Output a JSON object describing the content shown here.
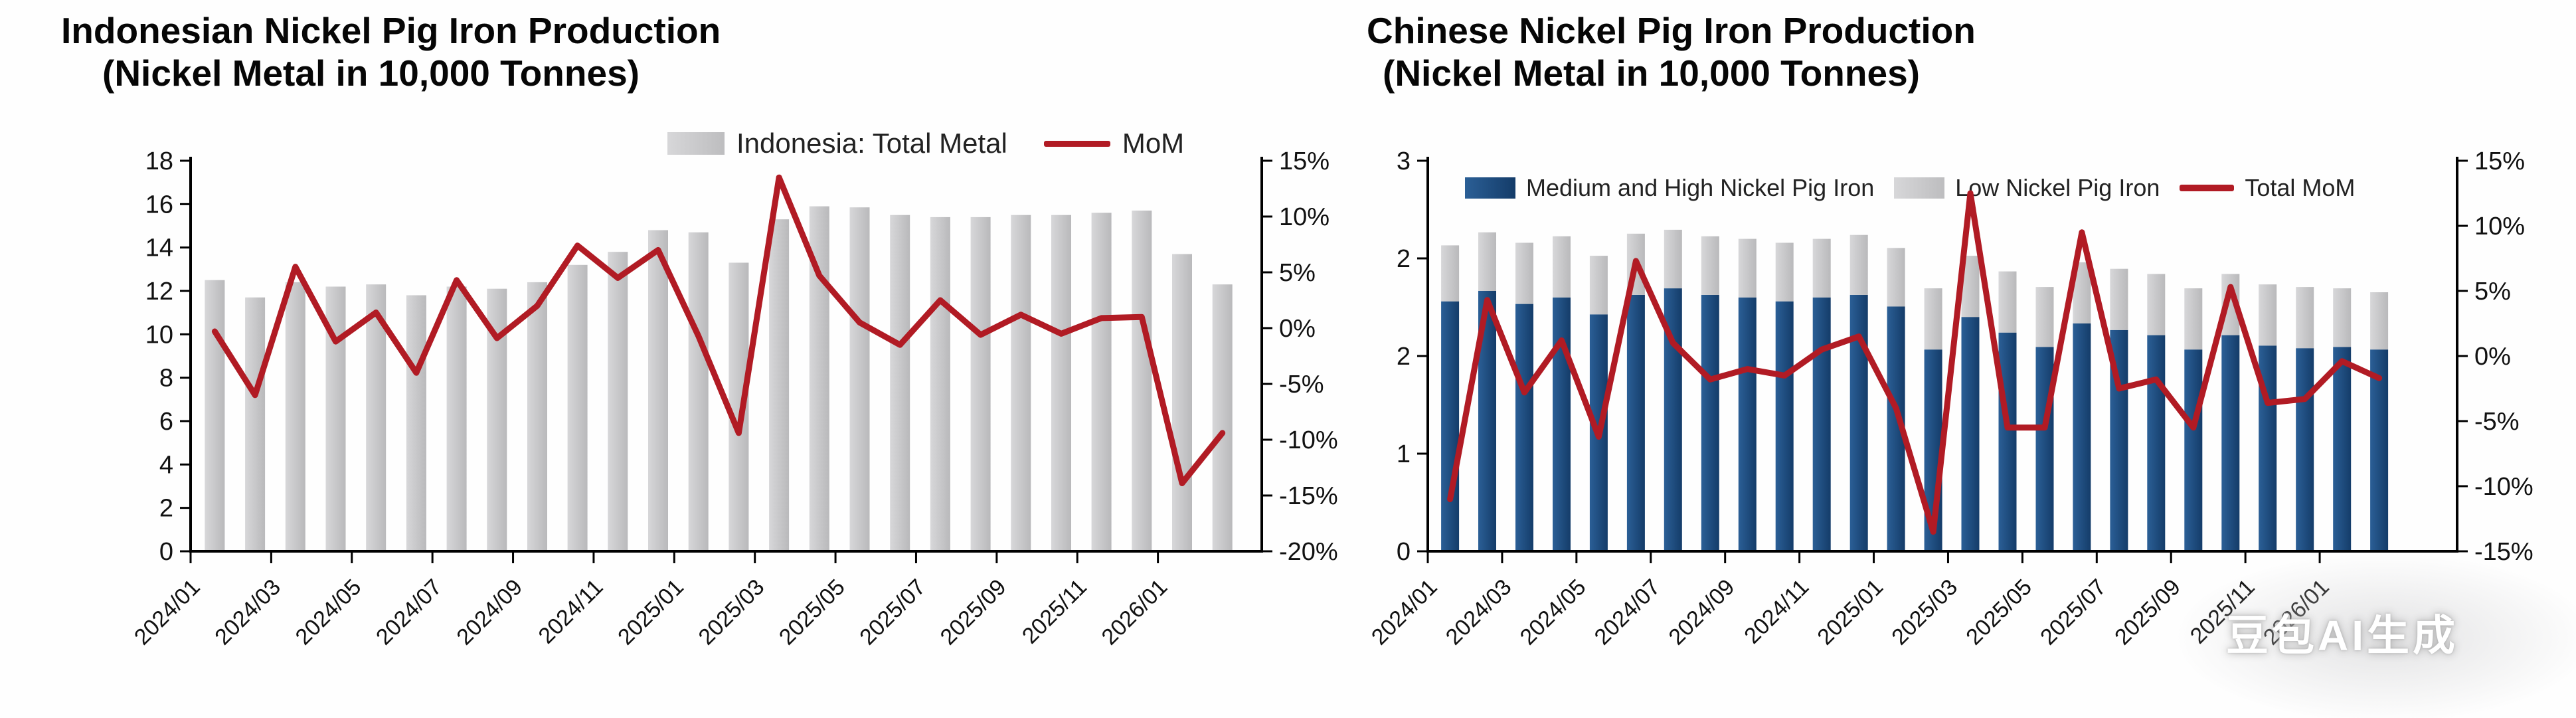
{
  "watermark_text": "豆包AI生成",
  "colors": {
    "bar_gray": "#c5c5c7",
    "bar_gray_light": "#d7d7d9",
    "bar_gray_dark": "#b9b9bb",
    "bar_navy": "#1b4e87",
    "bar_navy_light": "#2b5f96",
    "bar_navy_dark": "#143c69",
    "line_red": "#b11b24",
    "axis": "#000000",
    "tick_text": "#111111",
    "title_text": "#060606",
    "legend_text": "#222222",
    "watermark": "#ffffff"
  },
  "chart_data": [
    {
      "id": "indonesia-npi",
      "type": "bar",
      "title": "Indonesian Nickel Pig Iron Production",
      "subtitle": "(Nickel Metal in 10,000 Tonnes)",
      "x": [
        "2024/01",
        "2024/02",
        "2024/03",
        "2024/04",
        "2024/05",
        "2024/06",
        "2024/07",
        "2024/08",
        "2024/09",
        "2024/10",
        "2024/11",
        "2024/12",
        "2025/01",
        "2025/02",
        "2025/03",
        "2025/04",
        "2025/05",
        "2025/06",
        "2025/07",
        "2025/08",
        "2025/09",
        "2025/10",
        "2025/11",
        "2025/12",
        "2026/01",
        "2026/02"
      ],
      "x_tick_positions": [
        0,
        2,
        4,
        6,
        8,
        10,
        12,
        14,
        16,
        18,
        20,
        22,
        24
      ],
      "x_tick_labels": [
        "2024/01",
        "2024/03",
        "2024/05",
        "2024/07",
        "2024/09",
        "2024/11",
        "2025/01",
        "2025/03",
        "2025/05",
        "2025/07",
        "2025/09",
        "2025/11",
        "2026/01"
      ],
      "series": [
        {
          "name": "Indonesia: Total Metal",
          "kind": "bar",
          "axis": "left",
          "values": [
            12.5,
            11.7,
            12.4,
            12.2,
            12.3,
            11.8,
            12.2,
            12.1,
            12.4,
            13.2,
            13.8,
            14.8,
            14.7,
            13.3,
            15.3,
            15.9,
            15.85,
            15.5,
            15.4,
            15.4,
            15.5,
            15.5,
            15.6,
            15.7,
            13.7,
            12.3
          ]
        },
        {
          "name": "MoM",
          "kind": "line",
          "axis": "right",
          "values": [
            -0.3,
            -6.0,
            5.5,
            -1.2,
            1.4,
            -4.0,
            4.3,
            -0.9,
            2.0,
            7.4,
            4.5,
            7.0,
            -0.7,
            -9.4,
            13.5,
            4.7,
            0.5,
            -1.5,
            2.5,
            -0.6,
            1.2,
            -0.5,
            0.9,
            1.0,
            -13.9,
            -9.4
          ]
        }
      ],
      "ylim_left": [
        0,
        18
      ],
      "y_left_ticks": {
        "values": [
          0,
          2,
          4,
          6,
          8,
          10,
          12,
          14,
          16,
          18
        ],
        "labels": [
          "0",
          "2",
          "4",
          "6",
          "8",
          "10",
          "12",
          "14",
          "16",
          "18"
        ]
      },
      "ylim_right": [
        -20,
        15
      ],
      "y_right_ticks": {
        "values": [
          -20,
          -15,
          -10,
          -5,
          0,
          5,
          10,
          15
        ],
        "labels": [
          "-20%",
          "-15%",
          "-10%",
          "-5%",
          "0%",
          "5%",
          "10%",
          "15%"
        ]
      },
      "grid": false,
      "legend_position": "top"
    },
    {
      "id": "china-npi",
      "type": "bar",
      "title": "Chinese Nickel Pig Iron Production",
      "subtitle": "(Nickel Metal in 10,000 Tonnes)",
      "x": [
        "2024/01",
        "2024/02",
        "2024/03",
        "2024/04",
        "2024/05",
        "2024/06",
        "2024/07",
        "2024/08",
        "2024/09",
        "2024/10",
        "2024/11",
        "2024/12",
        "2025/01",
        "2025/02",
        "2025/03",
        "2025/04",
        "2025/05",
        "2025/06",
        "2025/07",
        "2025/08",
        "2025/09",
        "2025/10",
        "2025/11",
        "2025/12",
        "2026/01",
        "2026/02"
      ],
      "x_tick_positions": [
        0,
        2,
        4,
        6,
        8,
        10,
        12,
        14,
        16,
        18,
        20,
        22,
        24
      ],
      "x_tick_labels": [
        "2024/01",
        "2024/03",
        "2024/05",
        "2024/07",
        "2024/09",
        "2024/11",
        "2025/01",
        "2025/03",
        "2025/05",
        "2025/07",
        "2025/09",
        "2025/11",
        "2026/01"
      ],
      "series": [
        {
          "name": "Medium and High Nickel Pig Iron",
          "kind": "stack",
          "axis": "left",
          "values": [
            1.92,
            2.0,
            1.9,
            1.95,
            1.82,
            1.97,
            2.02,
            1.97,
            1.95,
            1.92,
            1.95,
            1.97,
            1.88,
            1.55,
            1.8,
            1.68,
            1.57,
            1.75,
            1.7,
            1.66,
            1.55,
            1.66,
            1.58,
            1.56,
            1.57,
            1.55
          ]
        },
        {
          "name": "Low Nickel Pig Iron",
          "kind": "stack",
          "axis": "left",
          "values": [
            0.43,
            0.45,
            0.47,
            0.47,
            0.45,
            0.47,
            0.45,
            0.45,
            0.45,
            0.45,
            0.45,
            0.46,
            0.45,
            0.47,
            0.47,
            0.47,
            0.46,
            0.47,
            0.47,
            0.47,
            0.47,
            0.47,
            0.47,
            0.47,
            0.45,
            0.44
          ]
        },
        {
          "name": "Total MoM",
          "kind": "line",
          "axis": "right",
          "values": [
            -11.0,
            4.3,
            -2.8,
            1.2,
            -6.2,
            7.3,
            1.0,
            -1.8,
            -1.0,
            -1.5,
            0.5,
            1.5,
            -4.0,
            -13.5,
            12.5,
            -5.5,
            -5.5,
            9.5,
            -2.5,
            -1.8,
            -5.5,
            5.3,
            -3.6,
            -3.3,
            -0.4,
            -1.7
          ]
        }
      ],
      "ylim_left": [
        0,
        3
      ],
      "y_left_ticks": {
        "values": [
          0,
          0.75,
          1.5,
          2.25,
          3
        ],
        "labels": [
          "0",
          "1",
          "2",
          "2",
          "3"
        ]
      },
      "ylim_right": [
        -15,
        15
      ],
      "y_right_ticks": {
        "values": [
          -15,
          -10,
          -5,
          0,
          5,
          10,
          15
        ],
        "labels": [
          "-15%",
          "-10%",
          "-5%",
          "0%",
          "5%",
          "10%",
          "15%"
        ]
      },
      "grid": false,
      "legend_position": "inside-top"
    }
  ]
}
